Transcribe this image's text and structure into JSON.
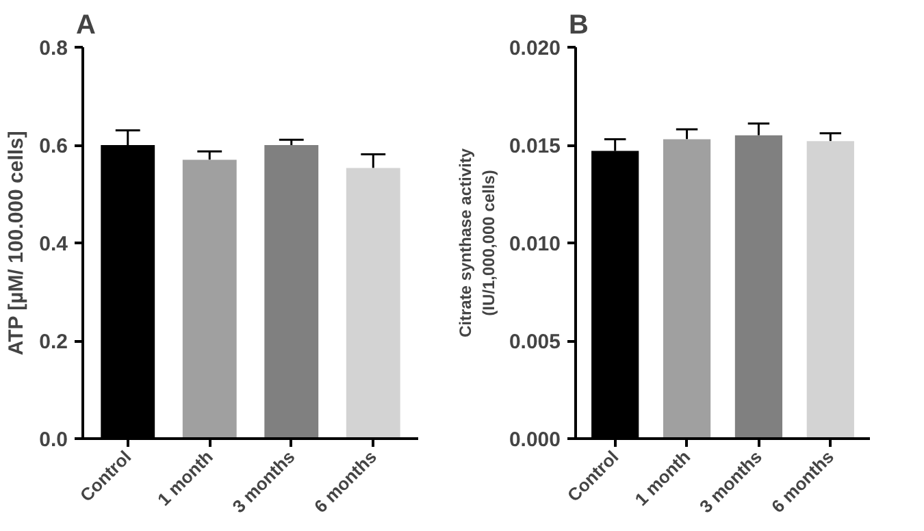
{
  "chart_data": [
    {
      "type": "bar",
      "title": "A",
      "ylabel": "ATP [µM/ 100.000 cells]",
      "categories": [
        "Control",
        "1 month",
        "3 months",
        "6 months"
      ],
      "values": [
        0.6,
        0.57,
        0.6,
        0.553
      ],
      "errors": [
        [
          0.6,
          0.63
        ],
        [
          0.57,
          0.587
        ],
        [
          0.6,
          0.611
        ],
        [
          0.553,
          0.581
        ]
      ],
      "colors": [
        "#000000",
        "#a0a0a0",
        "#808080",
        "#d3d3d3"
      ],
      "ylim": [
        0,
        0.8
      ],
      "yticks": [
        {
          "value": 0,
          "label": "0.0"
        },
        0.2,
        0.4,
        0.6,
        0.8
      ],
      "grid": false
    },
    {
      "type": "bar",
      "title": "B",
      "ylabel": "Citrate synthase activity\n(IU/1,000,000 cells)",
      "categories": [
        "Control",
        "1 month",
        "3 months",
        "6 months"
      ],
      "values": [
        0.0147,
        0.0153,
        0.0155,
        0.0152
      ],
      "errors": [
        [
          0.0147,
          0.0153
        ],
        [
          0.0153,
          0.0158
        ],
        [
          0.0155,
          0.0161
        ],
        [
          0.0152,
          0.0156
        ]
      ],
      "colors": [
        "#000000",
        "#a0a0a0",
        "#808080",
        "#d3d3d3"
      ],
      "ylim": [
        0,
        0.02
      ],
      "yticks": [
        {
          "value": 0,
          "label": "0.000"
        },
        0.005,
        {
          "value": 0.01,
          "label": "0.010"
        },
        0.015,
        {
          "value": 0.02,
          "label": "0.020"
        }
      ],
      "grid": false
    }
  ]
}
